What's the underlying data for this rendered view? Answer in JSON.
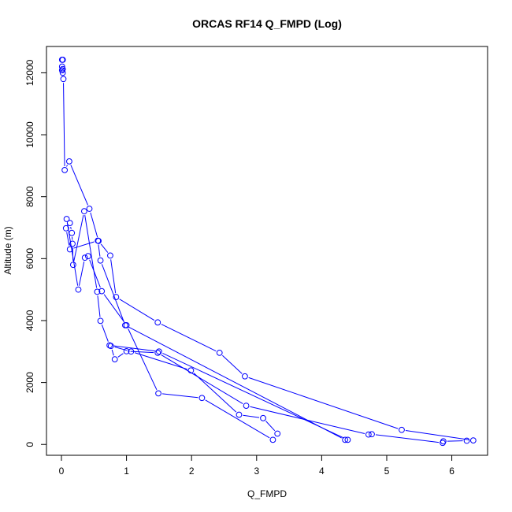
{
  "chart_data": {
    "type": "scatter",
    "title": "ORCAS RF14 Q_FMPD (Log)",
    "xlabel": "Q_FMPD",
    "ylabel": "Altitude (m)",
    "xlim": [
      -0.23,
      6.55
    ],
    "ylim": [
      -350,
      12850
    ],
    "xticks": [
      0,
      1,
      2,
      3,
      4,
      5,
      6
    ],
    "yticks": [
      0,
      2000,
      4000,
      6000,
      8000,
      10000,
      12000
    ],
    "grid": false,
    "legend": "none",
    "colors": {
      "series": "#0000ff",
      "axis": "#000000",
      "background": "#ffffff"
    },
    "series": [
      {
        "line": true,
        "markers": "open-circle",
        "x": [
          0.01,
          0.02,
          0.01,
          0.02,
          0.01,
          0.02,
          0.03,
          0.05,
          0.12,
          0.43,
          0.57,
          0.75,
          0.84,
          1.48,
          2.43,
          2.82,
          5.23,
          6.33,
          6.23,
          5.87,
          5.86,
          4.77,
          4.72,
          2.84,
          1.48,
          1.0,
          0.82,
          0.76,
          1.07,
          1.99,
          2.73,
          3.1,
          3.32,
          3.25,
          2.16,
          1.49,
          1.0,
          0.62,
          0.41,
          0.36,
          0.26,
          0.08,
          0.13,
          0.16,
          0.17,
          0.18,
          0.35,
          0.55,
          0.6,
          0.74,
          1.5,
          4.4,
          4.36,
          0.98,
          0.6,
          0.56,
          0.13,
          0.07
        ],
        "y": [
          12420,
          12420,
          12200,
          12120,
          12080,
          12000,
          11800,
          8860,
          9140,
          7610,
          6570,
          6100,
          4760,
          3940,
          2960,
          2200,
          470,
          130,
          120,
          100,
          50,
          330,
          320,
          1250,
          2960,
          3010,
          2750,
          3180,
          3000,
          2390,
          960,
          850,
          350,
          150,
          1500,
          1650,
          3850,
          4950,
          6080,
          6030,
          5000,
          7280,
          7150,
          6830,
          6480,
          5800,
          7530,
          4930,
          3990,
          3200,
          3000,
          150,
          150,
          3850,
          5940,
          6580,
          6300,
          6980
        ]
      }
    ]
  }
}
